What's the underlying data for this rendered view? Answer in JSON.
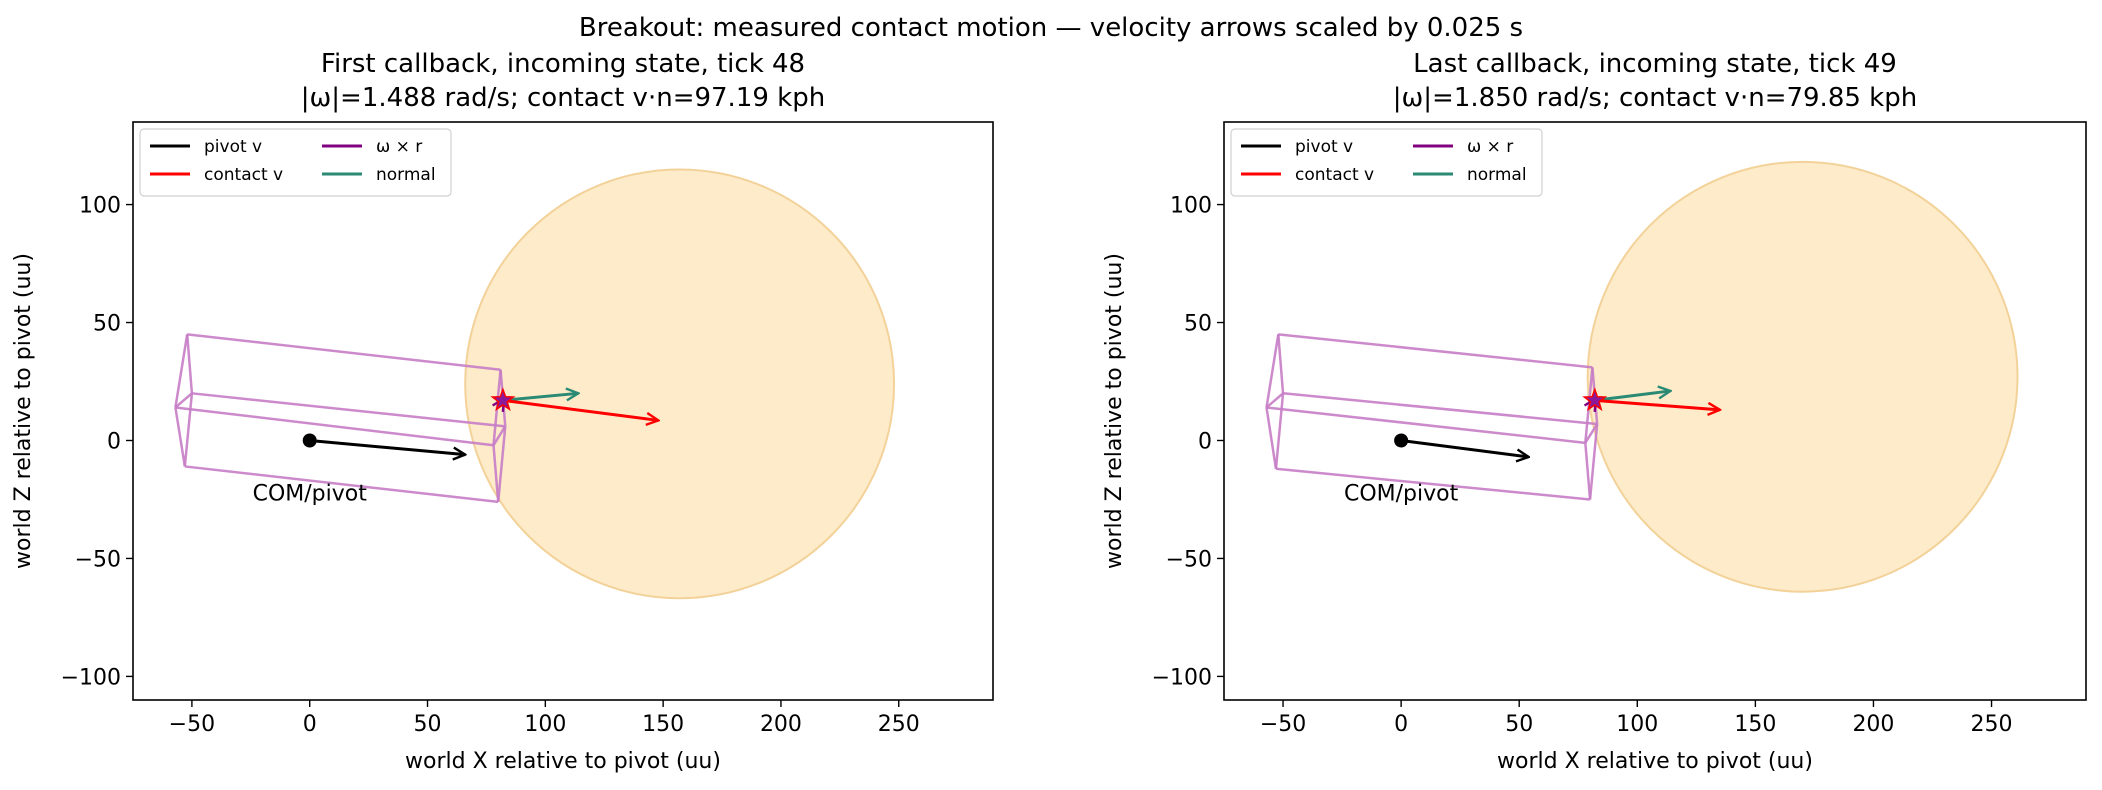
{
  "figure": {
    "suptitle": "Breakout: measured contact motion — velocity arrows scaled by 0.025 s"
  },
  "colors": {
    "pivot_v": "#000000",
    "contact_v": "#ff0000",
    "omega_cross_r": "#800080",
    "normal": "#2a8a73",
    "box_edges": "#c77dc7",
    "ball_fill": "#fdebc9",
    "ball_edge": "#f3d29a",
    "marker": "#8a1a9a"
  },
  "chart_data": [
    {
      "type": "scatter",
      "title_line1": "First callback, incoming state, tick 48",
      "title_line2": "|ω|=1.488 rad/s; contact v·n=97.19 kph",
      "xlabel": "world X relative to pivot (uu)",
      "ylabel": "world Z relative to pivot (uu)",
      "xlim": [
        -75,
        290
      ],
      "ylim": [
        -110,
        135
      ],
      "xticks": [
        -50,
        0,
        50,
        100,
        150,
        200,
        250
      ],
      "yticks": [
        -100,
        -50,
        0,
        50,
        100
      ],
      "grid": false,
      "legend_position": "top-left",
      "legend": [
        "pivot v",
        "contact v",
        "ω × r",
        "normal"
      ],
      "pivot_label": "COM/pivot",
      "pivot": [
        0,
        0
      ],
      "contact_point": [
        82,
        17
      ],
      "arrows": {
        "pivot_v": {
          "from": [
            0,
            0
          ],
          "to": [
            66,
            -6
          ]
        },
        "contact_v": {
          "from": [
            82,
            17
          ],
          "to": [
            148,
            8.5
          ]
        },
        "omega_cross_r": {
          "from": [
            82,
            17
          ],
          "to": [
            82.5,
            17.8
          ]
        },
        "normal": {
          "from": [
            82,
            17
          ],
          "to": [
            114,
            20
          ]
        }
      },
      "ball": {
        "center": [
          157,
          24
        ],
        "radius": 91
      },
      "box_edges": [
        [
          [
            -52,
            45
          ],
          [
            81,
            30
          ]
        ],
        [
          [
            -50,
            20
          ],
          [
            83,
            6
          ]
        ],
        [
          [
            -57,
            14
          ],
          [
            78,
            -2
          ]
        ],
        [
          [
            -53,
            -11
          ],
          [
            80,
            -26
          ]
        ],
        [
          [
            -52,
            45
          ],
          [
            -50,
            20
          ]
        ],
        [
          [
            -50,
            20
          ],
          [
            -57,
            14
          ]
        ],
        [
          [
            -57,
            14
          ],
          [
            -53,
            -11
          ]
        ],
        [
          [
            -52,
            45
          ],
          [
            -57,
            14
          ]
        ],
        [
          [
            -50,
            20
          ],
          [
            -53,
            -11
          ]
        ],
        [
          [
            81,
            30
          ],
          [
            83,
            6
          ]
        ],
        [
          [
            83,
            6
          ],
          [
            78,
            -2
          ]
        ],
        [
          [
            78,
            -2
          ],
          [
            80,
            -26
          ]
        ],
        [
          [
            81,
            30
          ],
          [
            78,
            -2
          ]
        ],
        [
          [
            83,
            6
          ],
          [
            80,
            -26
          ]
        ]
      ]
    },
    {
      "type": "scatter",
      "title_line1": "Last callback, incoming state, tick 49",
      "title_line2": "|ω|=1.850 rad/s; contact v·n=79.85 kph",
      "xlabel": "world X relative to pivot (uu)",
      "ylabel": "world Z relative to pivot (uu)",
      "xlim": [
        -75,
        290
      ],
      "ylim": [
        -110,
        135
      ],
      "xticks": [
        -50,
        0,
        50,
        100,
        150,
        200,
        250
      ],
      "yticks": [
        -100,
        -50,
        0,
        50,
        100
      ],
      "grid": false,
      "legend_position": "top-left",
      "legend": [
        "pivot v",
        "contact v",
        "ω × r",
        "normal"
      ],
      "pivot_label": "COM/pivot",
      "pivot": [
        0,
        0
      ],
      "contact_point": [
        82,
        17
      ],
      "arrows": {
        "pivot_v": {
          "from": [
            0,
            0
          ],
          "to": [
            54,
            -7
          ]
        },
        "contact_v": {
          "from": [
            82,
            17
          ],
          "to": [
            135,
            13
          ]
        },
        "omega_cross_r": {
          "from": [
            82,
            17
          ],
          "to": [
            82.5,
            17.8
          ]
        },
        "normal": {
          "from": [
            82,
            17
          ],
          "to": [
            114,
            21
          ]
        }
      },
      "ball": {
        "center": [
          170,
          27
        ],
        "radius": 91
      },
      "box_edges": [
        [
          [
            -52,
            45
          ],
          [
            81,
            31
          ]
        ],
        [
          [
            -50,
            20
          ],
          [
            83,
            7
          ]
        ],
        [
          [
            -57,
            14
          ],
          [
            78,
            -1
          ]
        ],
        [
          [
            -53,
            -12
          ],
          [
            80,
            -25
          ]
        ],
        [
          [
            -52,
            45
          ],
          [
            -50,
            20
          ]
        ],
        [
          [
            -50,
            20
          ],
          [
            -57,
            14
          ]
        ],
        [
          [
            -57,
            14
          ],
          [
            -53,
            -12
          ]
        ],
        [
          [
            -52,
            45
          ],
          [
            -57,
            14
          ]
        ],
        [
          [
            -50,
            20
          ],
          [
            -53,
            -12
          ]
        ],
        [
          [
            81,
            31
          ],
          [
            83,
            7
          ]
        ],
        [
          [
            83,
            7
          ],
          [
            78,
            -1
          ]
        ],
        [
          [
            78,
            -1
          ],
          [
            80,
            -25
          ]
        ],
        [
          [
            81,
            31
          ],
          [
            78,
            -1
          ]
        ],
        [
          [
            83,
            7
          ],
          [
            80,
            -25
          ]
        ]
      ]
    }
  ]
}
